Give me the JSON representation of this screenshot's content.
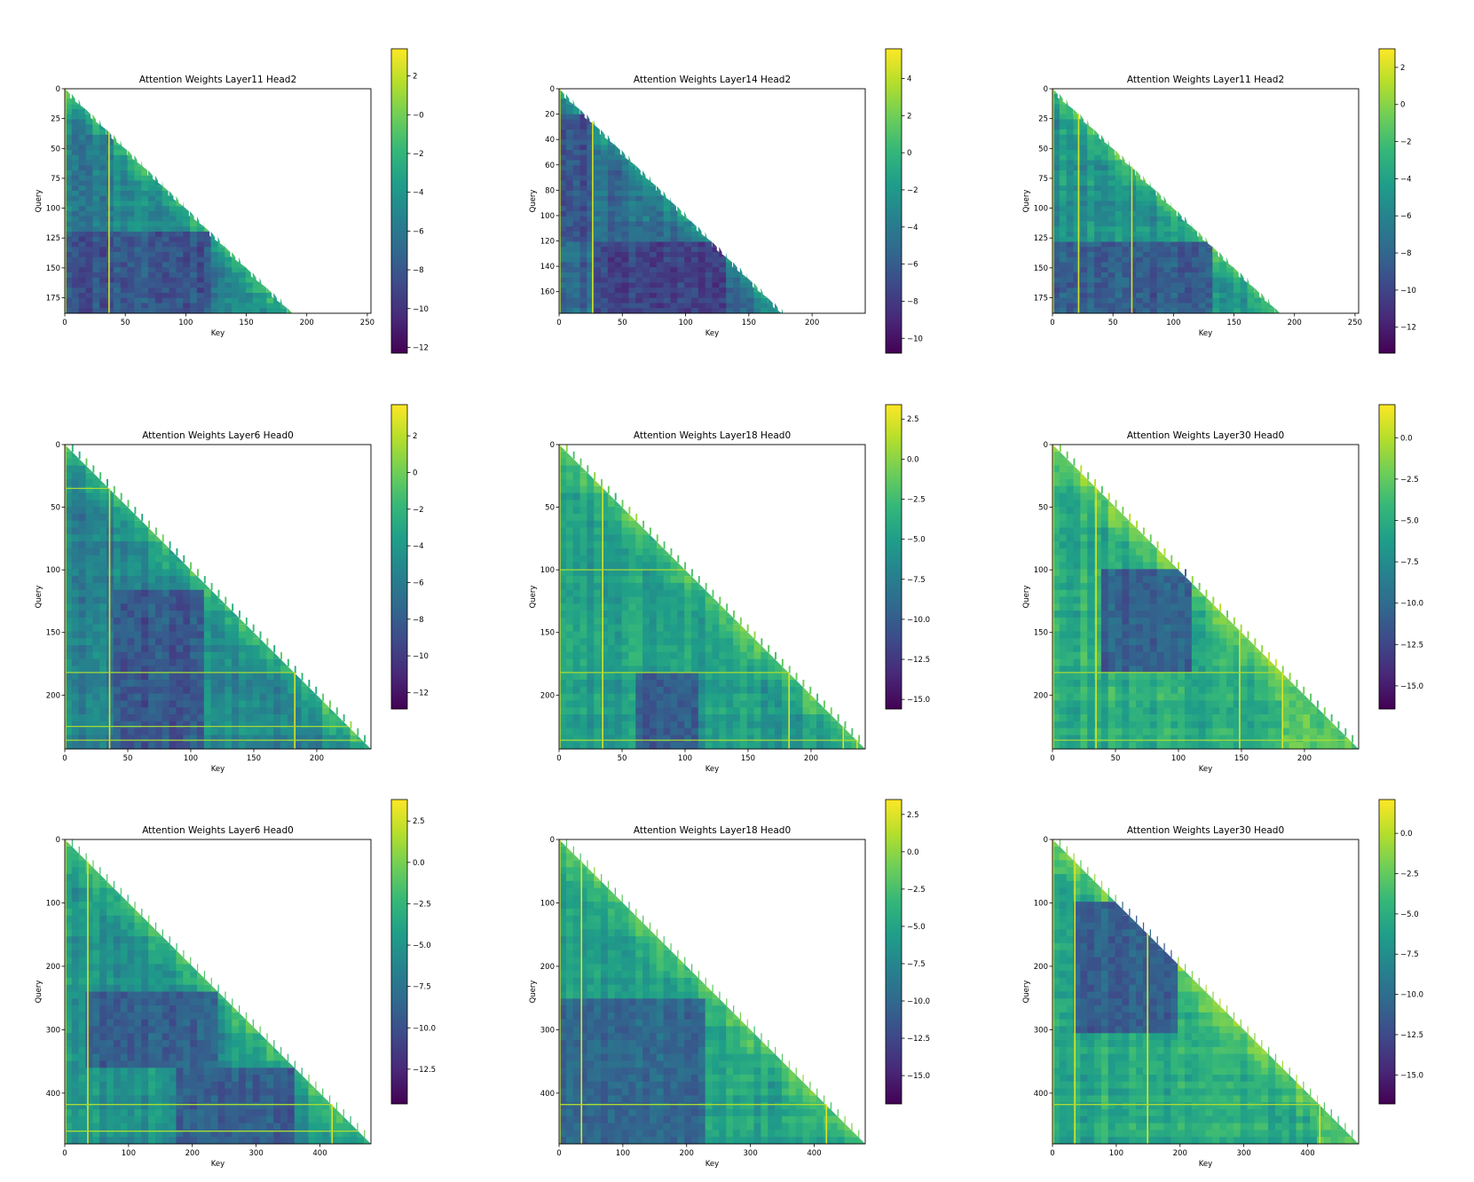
{
  "colormap": {
    "name": "viridis",
    "stops": [
      "#440154",
      "#482878",
      "#3e4989",
      "#31688e",
      "#26828e",
      "#1f9e89",
      "#35b779",
      "#6ece58",
      "#b5de2b",
      "#fde725"
    ]
  },
  "chart_data": [
    {
      "type": "heatmap",
      "title": "Attention Weights Layer11 Head2",
      "xlabel": "Key",
      "ylabel": "Query",
      "n_query": 188,
      "n_key": 253,
      "xlim": [
        0,
        253
      ],
      "ylim": [
        188,
        0
      ],
      "xticks": [
        0,
        50,
        100,
        150,
        200,
        250
      ],
      "yticks": [
        0,
        25,
        50,
        75,
        100,
        125,
        150,
        175
      ],
      "colorbar": {
        "range": [
          -12.3,
          3.4
        ],
        "ticks": [
          2,
          0,
          -2,
          -4,
          -6,
          -8,
          -10,
          -12
        ],
        "tick_labels": [
          "2",
          "−0",
          "−2",
          "−4",
          "−6",
          "−8",
          "−10",
          "−12"
        ]
      },
      "bright_columns": [
        0,
        36
      ],
      "bright_rows": [],
      "blocks": [
        {
          "from": 118,
          "to": 188,
          "key_from": 0,
          "key_to": 118,
          "level": -8.2
        },
        {
          "from": 40,
          "to": 118,
          "key_from": 0,
          "key_to": 40,
          "level": -5.8
        }
      ],
      "seed": 11
    },
    {
      "type": "heatmap",
      "title": "Attention Weights Layer14 Head2",
      "xlabel": "Key",
      "ylabel": "Query",
      "n_query": 177,
      "n_key": 242,
      "xlim": [
        0,
        242
      ],
      "ylim": [
        177,
        0
      ],
      "xticks": [
        0,
        50,
        100,
        150,
        200
      ],
      "yticks": [
        0,
        20,
        40,
        60,
        80,
        100,
        120,
        140,
        160
      ],
      "colorbar": {
        "range": [
          -10.8,
          5.6
        ],
        "ticks": [
          4,
          2,
          0,
          -2,
          -4,
          -6,
          -8,
          -10
        ],
        "tick_labels": [
          "4",
          "2",
          "0",
          "−2",
          "−4",
          "−6",
          "−8",
          "−10"
        ]
      },
      "bright_columns": [
        0,
        26
      ],
      "bright_rows": [],
      "blocks": [
        {
          "from": 120,
          "to": 177,
          "key_from": 30,
          "key_to": 130,
          "level": -7.6
        },
        {
          "from": 20,
          "to": 120,
          "key_from": 0,
          "key_to": 26,
          "level": -6.5
        }
      ],
      "seed": 14
    },
    {
      "type": "heatmap",
      "title": "Attention Weights Layer11 Head2",
      "xlabel": "Key",
      "ylabel": "Query",
      "n_query": 188,
      "n_key": 253,
      "xlim": [
        0,
        253
      ],
      "ylim": [
        188,
        0
      ],
      "xticks": [
        0,
        50,
        100,
        150,
        200,
        250
      ],
      "yticks": [
        0,
        25,
        50,
        75,
        100,
        125,
        150,
        175
      ],
      "colorbar": {
        "range": [
          -13.4,
          3.0
        ],
        "ticks": [
          2,
          0,
          -2,
          -4,
          -6,
          -8,
          -10,
          -12
        ],
        "tick_labels": [
          "2",
          "0",
          "−2",
          "−4",
          "−6",
          "−8",
          "−10",
          "−12"
        ]
      },
      "bright_columns": [
        0,
        21,
        65
      ],
      "bright_rows": [],
      "blocks": [
        {
          "from": 130,
          "to": 188,
          "key_from": 0,
          "key_to": 130,
          "level": -8.6
        }
      ],
      "seed": 3
    },
    {
      "type": "heatmap",
      "title": "Attention Weights Layer6 Head0",
      "xlabel": "Key",
      "ylabel": "Query",
      "n_query": 243,
      "n_key": 243,
      "xlim": [
        0,
        243
      ],
      "ylim": [
        243,
        0
      ],
      "xticks": [
        0,
        50,
        100,
        150,
        200
      ],
      "yticks": [
        0,
        50,
        100,
        150,
        200
      ],
      "colorbar": {
        "range": [
          -12.9,
          3.7
        ],
        "ticks": [
          2,
          0,
          -2,
          -4,
          -6,
          -8,
          -10,
          -12
        ],
        "tick_labels": [
          "2",
          "0",
          "−2",
          "−4",
          "−6",
          "−8",
          "−10",
          "−12"
        ]
      },
      "bright_columns": [
        0,
        35,
        182
      ],
      "bright_rows": [
        35,
        182,
        225,
        236
      ],
      "blocks": [
        {
          "from": 118,
          "to": 243,
          "key_from": 40,
          "key_to": 110,
          "level": -8.4
        }
      ],
      "seed": 6
    },
    {
      "type": "heatmap",
      "title": "Attention Weights Layer18 Head0",
      "xlabel": "Key",
      "ylabel": "Query",
      "n_query": 243,
      "n_key": 243,
      "xlim": [
        0,
        243
      ],
      "ylim": [
        243,
        0
      ],
      "xticks": [
        0,
        50,
        100,
        150,
        200
      ],
      "yticks": [
        0,
        50,
        100,
        150,
        200
      ],
      "colorbar": {
        "range": [
          -15.6,
          3.4
        ],
        "ticks": [
          2.5,
          0.0,
          -2.5,
          -5.0,
          -7.5,
          -10.0,
          -12.5,
          -15.0
        ],
        "tick_labels": [
          "2.5",
          "0.0",
          "−2.5",
          "−5.0",
          "−7.5",
          "−10.0",
          "−12.5",
          "−15.0"
        ]
      },
      "bright_columns": [
        0,
        34,
        182,
        225,
        236
      ],
      "bright_rows": [
        100,
        182,
        236
      ],
      "blocks": [
        {
          "from": 182,
          "to": 243,
          "key_from": 60,
          "key_to": 110,
          "level": -10.2
        }
      ],
      "seed": 18
    },
    {
      "type": "heatmap",
      "title": "Attention Weights Layer30 Head0",
      "xlabel": "Key",
      "ylabel": "Query",
      "n_query": 243,
      "n_key": 243,
      "xlim": [
        0,
        243
      ],
      "ylim": [
        243,
        0
      ],
      "xticks": [
        0,
        50,
        100,
        150,
        200
      ],
      "yticks": [
        0,
        50,
        100,
        150,
        200
      ],
      "colorbar": {
        "range": [
          -16.4,
          2.0
        ],
        "ticks": [
          0.0,
          -2.5,
          -5.0,
          -7.5,
          -10.0,
          -12.5,
          -15.0
        ],
        "tick_labels": [
          "0.0",
          "−2.5",
          "−5.0",
          "−7.5",
          "−10.0",
          "−12.5",
          "−15.0"
        ]
      },
      "bright_columns": [
        0,
        34,
        148,
        182
      ],
      "bright_rows": [
        182,
        236
      ],
      "blocks": [
        {
          "from": 100,
          "to": 182,
          "key_from": 40,
          "key_to": 110,
          "level": -10.8
        },
        {
          "from": 190,
          "to": 243,
          "key_from": 182,
          "key_to": 243,
          "level": -3.0
        }
      ],
      "seed": 30
    },
    {
      "type": "heatmap",
      "title": "Attention Weights Layer6 Head0",
      "xlabel": "Key",
      "ylabel": "Query",
      "n_query": 480,
      "n_key": 480,
      "xlim": [
        0,
        480
      ],
      "ylim": [
        480,
        0
      ],
      "xticks": [
        0,
        100,
        200,
        300,
        400
      ],
      "yticks": [
        0,
        100,
        200,
        300,
        400
      ],
      "colorbar": {
        "range": [
          -14.6,
          3.8
        ],
        "ticks": [
          2.5,
          0.0,
          -2.5,
          -5.0,
          -7.5,
          -10.0,
          -12.5
        ],
        "tick_labels": [
          "2.5",
          "0.0",
          "−2.5",
          "−5.0",
          "−7.5",
          "−10.0",
          "−12.5"
        ]
      },
      "bright_columns": [
        0,
        35,
        418
      ],
      "bright_rows": [
        418,
        460
      ],
      "blocks": [
        {
          "from": 240,
          "to": 360,
          "key_from": 30,
          "key_to": 240,
          "level": -9.0
        },
        {
          "from": 360,
          "to": 480,
          "key_from": 180,
          "key_to": 360,
          "level": -9.2
        }
      ],
      "seed": 60
    },
    {
      "type": "heatmap",
      "title": "Attention Weights Layer18 Head0",
      "xlabel": "Key",
      "ylabel": "Query",
      "n_query": 480,
      "n_key": 480,
      "xlim": [
        0,
        480
      ],
      "ylim": [
        480,
        0
      ],
      "xticks": [
        0,
        100,
        200,
        300,
        400
      ],
      "yticks": [
        0,
        100,
        200,
        300,
        400
      ],
      "colorbar": {
        "range": [
          -16.9,
          3.5
        ],
        "ticks": [
          2.5,
          0.0,
          -2.5,
          -5.0,
          -7.5,
          -10.0,
          -12.5,
          -15.0
        ],
        "tick_labels": [
          "2.5",
          "0.0",
          "−2.5",
          "−5.0",
          "−7.5",
          "−10.0",
          "−12.5",
          "−15.0"
        ]
      },
      "bright_columns": [
        0,
        34,
        418
      ],
      "bright_rows": [
        418
      ],
      "blocks": [
        {
          "from": 250,
          "to": 480,
          "key_from": 0,
          "key_to": 230,
          "level": -10.0
        }
      ],
      "seed": 180
    },
    {
      "type": "heatmap",
      "title": "Attention Weights Layer30 Head0",
      "xlabel": "Key",
      "ylabel": "Query",
      "n_query": 480,
      "n_key": 480,
      "xlim": [
        0,
        480
      ],
      "ylim": [
        480,
        0
      ],
      "xticks": [
        0,
        100,
        200,
        300,
        400
      ],
      "yticks": [
        0,
        100,
        200,
        300,
        400
      ],
      "colorbar": {
        "range": [
          -16.8,
          2.1
        ],
        "ticks": [
          0.0,
          -2.5,
          -5.0,
          -7.5,
          -10.0,
          -12.5,
          -15.0
        ],
        "tick_labels": [
          "0.0",
          "−2.5",
          "−5.0",
          "−7.5",
          "−10.0",
          "−12.5",
          "−15.0"
        ]
      },
      "bright_columns": [
        0,
        34,
        148,
        418
      ],
      "bright_rows": [
        418
      ],
      "blocks": [
        {
          "from": 100,
          "to": 300,
          "key_from": 30,
          "key_to": 200,
          "level": -11.0
        },
        {
          "from": 420,
          "to": 480,
          "key_from": 418,
          "key_to": 480,
          "level": -3.5
        }
      ],
      "seed": 300
    }
  ]
}
